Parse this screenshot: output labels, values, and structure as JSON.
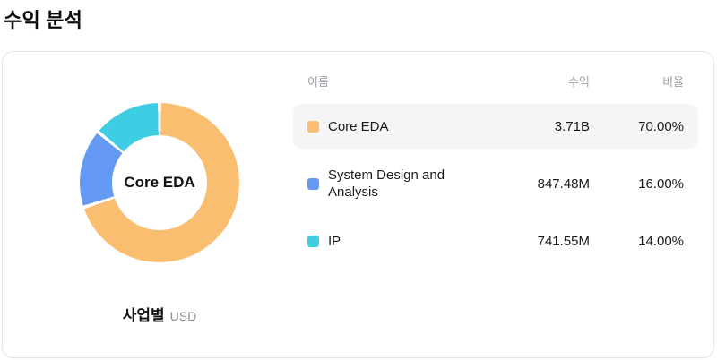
{
  "page_title": "수익 분석",
  "card": {
    "caption": {
      "label": "사업별",
      "unit": "USD"
    }
  },
  "table": {
    "headers": {
      "name": "이름",
      "revenue": "수익",
      "ratio": "비율"
    },
    "rows": [
      {
        "name": "Core EDA",
        "revenue": "3.71B",
        "ratio": "70.00%",
        "color": "#F9BE6F",
        "highlighted": true
      },
      {
        "name": "System Design and Analysis",
        "revenue": "847.48M",
        "ratio": "16.00%",
        "color": "#6499F4",
        "highlighted": false
      },
      {
        "name": "IP",
        "revenue": "741.55M",
        "ratio": "14.00%",
        "color": "#3FCDE4",
        "highlighted": false
      }
    ]
  },
  "chart_data": {
    "type": "pie",
    "title": "수익 분석",
    "subtitle_label": "사업별",
    "unit": "USD",
    "donut": true,
    "center_label": "Core EDA",
    "start_angle_deg": 0,
    "direction": "clockwise",
    "categories": [
      "Core EDA",
      "System Design and Analysis",
      "IP"
    ],
    "values": [
      70,
      16,
      14
    ],
    "value_unit": "percent",
    "revenues": [
      "3.71B",
      "847.48M",
      "741.55M"
    ],
    "colors": [
      "#F9BE6F",
      "#6499F4",
      "#3FCDE4"
    ],
    "segment_gap_color": "#ffffff",
    "legend_position": "right-table"
  }
}
